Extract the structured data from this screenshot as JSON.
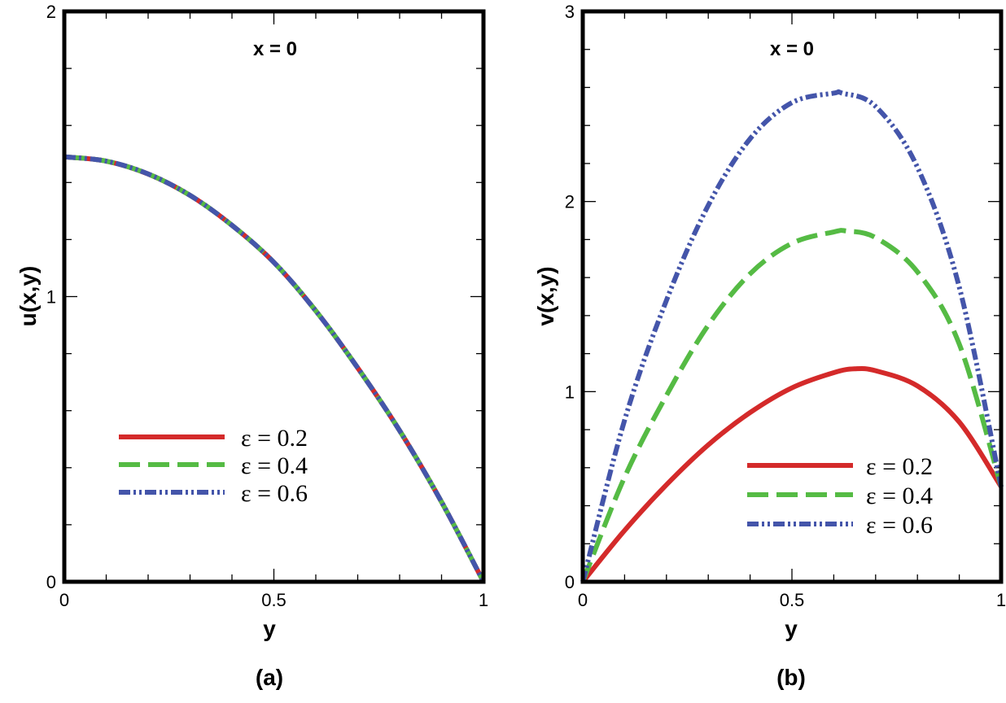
{
  "colors": {
    "red": "#d42a2a",
    "green": "#55bb44",
    "blue": "#4455aa",
    "axis": "#000000"
  },
  "chart_data": [
    {
      "type": "line",
      "panel_label": "(a)",
      "annotation": "x = 0",
      "xlabel": "y",
      "ylabel": "u(x,y)",
      "xlim": [
        0,
        1
      ],
      "ylim": [
        0,
        2
      ],
      "xticks": [
        0,
        0.5,
        1
      ],
      "xtick_labels": [
        "0",
        "0.5",
        "1"
      ],
      "yticks": [
        0,
        1,
        2
      ],
      "ytick_labels": [
        "0",
        "1",
        "2"
      ],
      "legend_position": "lower-left",
      "series": [
        {
          "name": "ε = 0.2",
          "label": "ε = 0.2",
          "color": "#d42a2a",
          "style": "solid",
          "x": [
            0,
            0.1,
            0.2,
            0.3,
            0.4,
            0.5,
            0.6,
            0.7,
            0.8,
            0.9,
            1.0
          ],
          "y": [
            1.49,
            1.475,
            1.43,
            1.355,
            1.25,
            1.12,
            0.95,
            0.75,
            0.53,
            0.28,
            0.0
          ]
        },
        {
          "name": "ε = 0.4",
          "label": "ε = 0.4",
          "color": "#55bb44",
          "style": "dashed",
          "x": [
            0,
            0.1,
            0.2,
            0.3,
            0.4,
            0.5,
            0.6,
            0.7,
            0.8,
            0.9,
            1.0
          ],
          "y": [
            1.49,
            1.475,
            1.43,
            1.355,
            1.25,
            1.12,
            0.95,
            0.75,
            0.53,
            0.28,
            0.0
          ]
        },
        {
          "name": "ε = 0.6",
          "label": "ε = 0.6",
          "color": "#4455aa",
          "style": "dash-dot-dot",
          "x": [
            0,
            0.1,
            0.2,
            0.3,
            0.4,
            0.5,
            0.6,
            0.7,
            0.8,
            0.9,
            1.0
          ],
          "y": [
            1.49,
            1.475,
            1.43,
            1.355,
            1.25,
            1.12,
            0.95,
            0.75,
            0.53,
            0.28,
            0.0
          ]
        }
      ]
    },
    {
      "type": "line",
      "panel_label": "(b)",
      "annotation": "x = 0",
      "xlabel": "y",
      "ylabel": "v(x,y)",
      "xlim": [
        0,
        1
      ],
      "ylim": [
        0,
        3
      ],
      "xticks": [
        0,
        0.5,
        1
      ],
      "xtick_labels": [
        "0",
        "0.5",
        "1"
      ],
      "yticks": [
        0,
        1,
        2,
        3
      ],
      "ytick_labels": [
        "0",
        "1",
        "2",
        "3"
      ],
      "legend_position": "lower-right",
      "series": [
        {
          "name": "ε = 0.2",
          "label": "ε = 0.2",
          "color": "#d42a2a",
          "style": "solid",
          "x": [
            0,
            0.1,
            0.2,
            0.3,
            0.4,
            0.5,
            0.6,
            0.65,
            0.7,
            0.8,
            0.9,
            1.0
          ],
          "y": [
            0,
            0.27,
            0.51,
            0.72,
            0.89,
            1.02,
            1.1,
            1.12,
            1.11,
            1.03,
            0.84,
            0.5
          ]
        },
        {
          "name": "ε = 0.4",
          "label": "ε = 0.4",
          "color": "#55bb44",
          "style": "dashed",
          "x": [
            0,
            0.1,
            0.2,
            0.3,
            0.4,
            0.5,
            0.6,
            0.63,
            0.7,
            0.8,
            0.9,
            1.0
          ],
          "y": [
            0,
            0.55,
            0.98,
            1.35,
            1.62,
            1.78,
            1.84,
            1.845,
            1.81,
            1.63,
            1.25,
            0.5
          ]
        },
        {
          "name": "ε = 0.6",
          "label": "ε = 0.6",
          "color": "#4455aa",
          "style": "dash-dot-dot",
          "x": [
            0,
            0.1,
            0.2,
            0.3,
            0.4,
            0.5,
            0.6,
            0.62,
            0.7,
            0.8,
            0.9,
            1.0
          ],
          "y": [
            0,
            0.85,
            1.48,
            1.98,
            2.33,
            2.52,
            2.57,
            2.57,
            2.5,
            2.18,
            1.55,
            0.5
          ]
        }
      ]
    }
  ]
}
